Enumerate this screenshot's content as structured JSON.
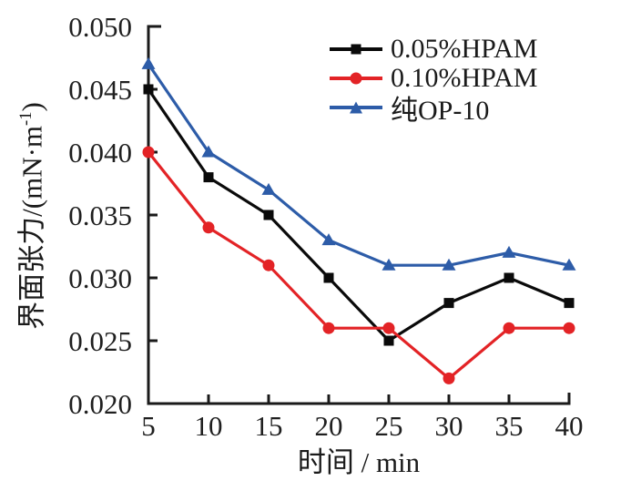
{
  "chart_data": {
    "type": "line",
    "title": "",
    "xlabel": "时间 / min",
    "ylabel": "界面张力/(mN·m⁻¹)",
    "ylabel_parts": {
      "pre": "界面张力/(mN·m",
      "sup": "-1",
      "post": ")"
    },
    "x": [
      5,
      10,
      15,
      20,
      25,
      30,
      35,
      40
    ],
    "xlim": [
      5,
      40
    ],
    "ylim": [
      0.02,
      0.05
    ],
    "xticks": [
      {
        "value": 5,
        "label": "5"
      },
      {
        "value": 10,
        "label": "10"
      },
      {
        "value": 15,
        "label": "15"
      },
      {
        "value": 20,
        "label": "20"
      },
      {
        "value": 25,
        "label": "25"
      },
      {
        "value": 30,
        "label": "30"
      },
      {
        "value": 35,
        "label": "35"
      },
      {
        "value": 40,
        "label": "40"
      }
    ],
    "yticks": [
      {
        "value": 0.02,
        "label": "0.020"
      },
      {
        "value": 0.025,
        "label": "0.025"
      },
      {
        "value": 0.03,
        "label": "0.030"
      },
      {
        "value": 0.035,
        "label": "0.035"
      },
      {
        "value": 0.04,
        "label": "0.040"
      },
      {
        "value": 0.045,
        "label": "0.045"
      },
      {
        "value": 0.05,
        "label": "0.050"
      }
    ],
    "grid": false,
    "legend_position": "top-right-inside",
    "axis_color": "#1a1a1a",
    "series": [
      {
        "name": "0.05%HPAM",
        "color": "#0a0a0a",
        "marker": "square",
        "values": [
          0.045,
          0.038,
          0.035,
          0.03,
          0.025,
          0.028,
          0.03,
          0.028
        ]
      },
      {
        "name": "0.10%HPAM",
        "color": "#e32326",
        "marker": "circle",
        "values": [
          0.04,
          0.034,
          0.031,
          0.026,
          0.026,
          0.022,
          0.026,
          0.026
        ]
      },
      {
        "name": "纯OP-10",
        "color": "#2d5ca8",
        "marker": "triangle",
        "values": [
          0.047,
          0.04,
          0.037,
          0.033,
          0.031,
          0.031,
          0.032,
          0.031
        ]
      }
    ]
  }
}
